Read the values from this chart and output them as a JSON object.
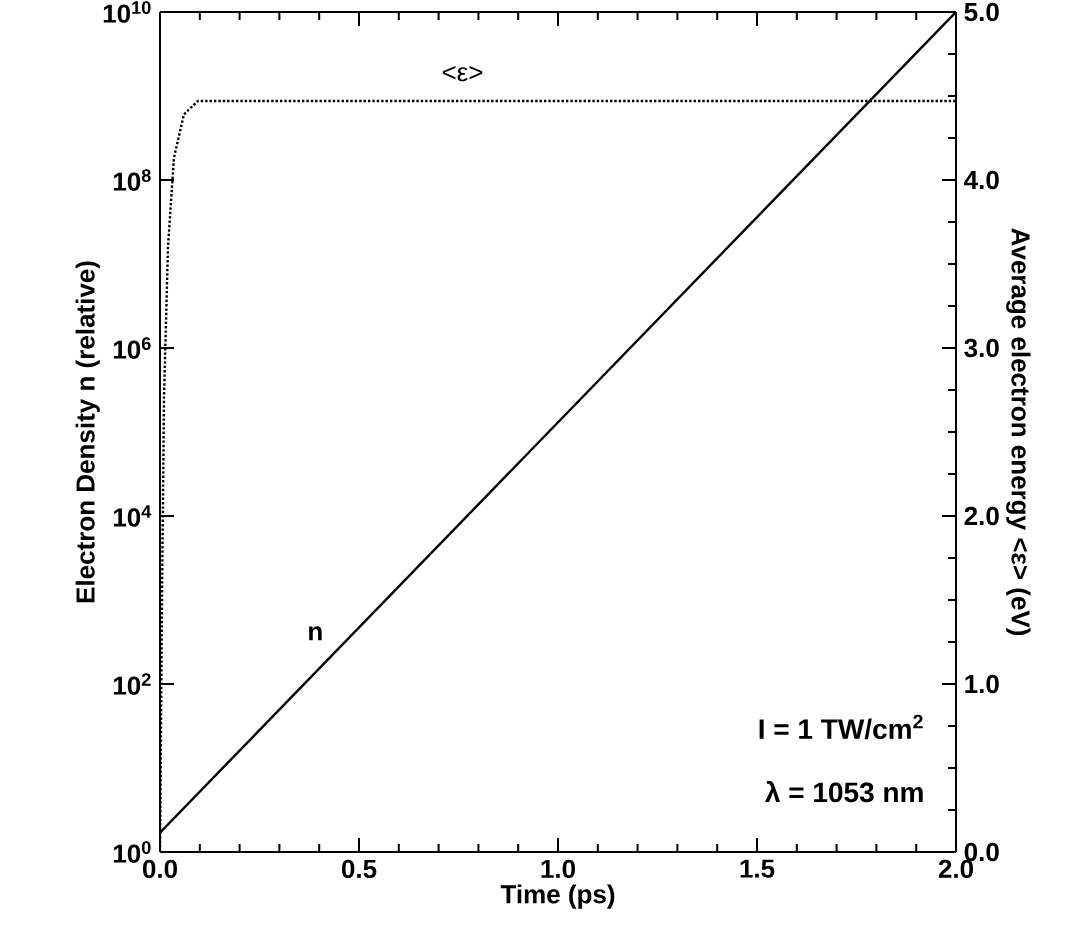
{
  "chart_data": {
    "type": "line",
    "xlabel": "Time (ps)",
    "ylabel": "Electron Density n (relative)",
    "y2label": "Average electron energy <ε> (eV)",
    "log": "y",
    "xlim": [
      0,
      2
    ],
    "xticks": [
      {
        "value": 0,
        "label": "0.0"
      },
      {
        "value": 0.5,
        "label": "0.5"
      },
      {
        "value": 1,
        "label": "1.0"
      },
      {
        "value": 1.5,
        "label": "1.5"
      },
      {
        "value": 2,
        "label": "2.0"
      }
    ],
    "ylim": [
      1,
      10000000000
    ],
    "yticks": [
      {
        "value": 1,
        "label": "10$^{0}$"
      },
      {
        "value": 100,
        "label": "10$^{2}$"
      },
      {
        "value": 10000,
        "label": "10$^{4}$"
      },
      {
        "value": 1000000,
        "label": "10$^{6}$"
      },
      {
        "value": 100000000,
        "label": "10$^{8}$"
      },
      {
        "value": 10000000000,
        "label": "10$^{10}$"
      }
    ],
    "y2lim": [
      0,
      5
    ],
    "y2ticks": [
      {
        "value": 0,
        "label": "0.0"
      },
      {
        "value": 1,
        "label": "1.0"
      },
      {
        "value": 2,
        "label": "2.0"
      },
      {
        "value": 3,
        "label": "3.0"
      },
      {
        "value": 4,
        "label": "4.0"
      },
      {
        "value": 5,
        "label": "5.0"
      }
    ],
    "series": [
      {
        "name": "n",
        "color": "#000000",
        "line_style": "solid",
        "x": [
          0,
          2
        ],
        "values": [
          1.7,
          10000000000
        ]
      },
      {
        "name": "<ε>",
        "color": "#000000",
        "line_style": "dotted",
        "axis": "y2",
        "x": [
          0,
          0.005,
          0.01,
          0.02,
          0.035,
          0.06,
          0.095,
          2
        ],
        "values": [
          0,
          1.5,
          2.7,
          3.6,
          4.13,
          4.39,
          4.47,
          4.47
        ]
      }
    ],
    "annotations": [
      "I = 1 TW/cm$^{2}$",
      "λ = 1053 nm"
    ]
  }
}
